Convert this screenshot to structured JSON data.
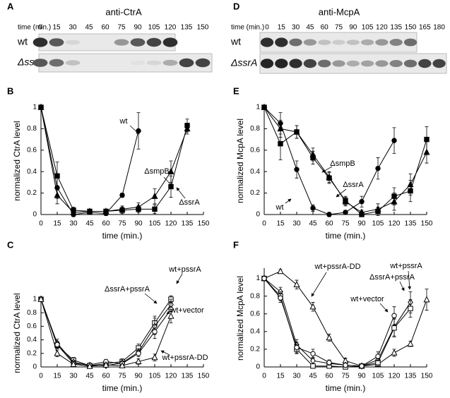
{
  "blots": [
    {
      "label": "A",
      "title": "anti-CtrA",
      "time_label": "time (min.)",
      "times": [
        0,
        15,
        30,
        45,
        60,
        75,
        90,
        105,
        120,
        135,
        150
      ],
      "rows": [
        "wt",
        "ΔssrA"
      ]
    },
    {
      "label": "D",
      "title": "anti-McpA",
      "time_label": "time (min.)",
      "times": [
        0,
        15,
        30,
        45,
        60,
        75,
        90,
        105,
        120,
        135,
        150,
        165,
        180
      ],
      "rows": [
        "wt",
        "ΔssrA"
      ]
    }
  ],
  "chart_data": [
    {
      "label": "B",
      "type": "line",
      "xlabel": "time (min.)",
      "ylabel": "normalized CtrA level",
      "xlim": [
        0,
        150
      ],
      "ylim": [
        0,
        1
      ],
      "xticks": [
        0,
        15,
        30,
        45,
        60,
        75,
        90,
        105,
        120,
        135,
        150
      ],
      "yticks": [
        0,
        0.2,
        0.4,
        0.6,
        0.8,
        1
      ],
      "series": [
        {
          "name": "wt",
          "color": "#000000",
          "marker": "circle",
          "filled": true,
          "x": [
            0,
            15,
            30,
            45,
            60,
            75,
            90
          ],
          "values": [
            1,
            0.25,
            0,
            0.02,
            0.01,
            0.18,
            0.78
          ],
          "errors": [
            0,
            0.1,
            0.02,
            0.02,
            0.02,
            0.02,
            0.17
          ]
        },
        {
          "name": "ΔsmpB",
          "color": "#000000",
          "marker": "triangle",
          "filled": true,
          "x": [
            0,
            15,
            30,
            45,
            60,
            75,
            90,
            105,
            120,
            135
          ],
          "values": [
            1,
            0.18,
            0.02,
            0.03,
            0.03,
            0.05,
            0.07,
            0.17,
            0.4,
            0.8
          ],
          "errors": [
            0,
            0.08,
            0.02,
            0.02,
            0.02,
            0.03,
            0.04,
            0.07,
            0.1,
            0.05
          ]
        },
        {
          "name": "ΔssrA",
          "color": "#000000",
          "marker": "square",
          "filled": true,
          "x": [
            0,
            15,
            30,
            45,
            60,
            75,
            90,
            105,
            120,
            135
          ],
          "values": [
            1,
            0.36,
            0.04,
            0.03,
            0.03,
            0.04,
            0.05,
            0.05,
            0.26,
            0.83
          ],
          "errors": [
            0,
            0.13,
            0.03,
            0.02,
            0.02,
            0.03,
            0.03,
            0.04,
            0.1,
            0.06
          ]
        }
      ]
    },
    {
      "label": "C",
      "type": "line",
      "xlabel": "time (min.)",
      "ylabel": "normalized CtrA level",
      "xlim": [
        0,
        150
      ],
      "ylim": [
        0,
        1
      ],
      "xticks": [
        0,
        15,
        30,
        45,
        60,
        75,
        90,
        105,
        120,
        135,
        150
      ],
      "yticks": [
        0,
        0.2,
        0.4,
        0.6,
        0.8,
        1
      ],
      "series": [
        {
          "name": "wt+pssrA",
          "color": "#000000",
          "marker": "square",
          "filled": false,
          "x": [
            0,
            15,
            30,
            45,
            60,
            75,
            90,
            105,
            120
          ],
          "values": [
            1,
            0.32,
            0.1,
            0.02,
            0.05,
            0.08,
            0.28,
            0.65,
            1
          ],
          "errors": [
            0,
            0.05,
            0.04,
            0.02,
            0.03,
            0.04,
            0.06,
            0.1,
            0.05
          ]
        },
        {
          "name": "ΔssrA+pssrA",
          "color": "#000000",
          "marker": "diamond",
          "filled": false,
          "x": [
            0,
            15,
            30,
            45,
            60,
            75,
            90,
            105,
            120
          ],
          "values": [
            1,
            0.35,
            0.07,
            0.02,
            0.02,
            0.06,
            0.22,
            0.6,
            0.92
          ],
          "errors": [
            0,
            0.06,
            0.03,
            0.02,
            0.02,
            0.03,
            0.05,
            0.12,
            0.08
          ]
        },
        {
          "name": "wt+vector",
          "color": "#000000",
          "marker": "circle",
          "filled": false,
          "x": [
            0,
            15,
            30,
            45,
            60,
            75,
            90,
            105,
            120
          ],
          "values": [
            1,
            0.33,
            0.05,
            0.03,
            0.08,
            0.05,
            0.2,
            0.52,
            0.85
          ],
          "errors": [
            0,
            0.05,
            0.03,
            0.02,
            0.03,
            0.03,
            0.05,
            0.1,
            0.1
          ]
        },
        {
          "name": "wt+pssrA-DD",
          "color": "#000000",
          "marker": "triangle",
          "filled": false,
          "x": [
            0,
            15,
            30,
            45,
            60,
            75,
            90,
            105,
            120
          ],
          "values": [
            1,
            0.2,
            0.04,
            0.01,
            0.03,
            0.02,
            0.08,
            0.14,
            0.75
          ],
          "errors": [
            0,
            0.05,
            0.02,
            0.02,
            0.02,
            0.02,
            0.04,
            0.05,
            0.1
          ]
        }
      ]
    },
    {
      "label": "E",
      "type": "line",
      "xlabel": "time (min.)",
      "ylabel": "normalized McpA level",
      "xlim": [
        0,
        150
      ],
      "ylim": [
        0,
        1
      ],
      "xticks": [
        0,
        15,
        30,
        45,
        60,
        75,
        90,
        105,
        120,
        135,
        150
      ],
      "yticks": [
        0,
        0.2,
        0.4,
        0.6,
        0.8,
        1
      ],
      "series": [
        {
          "name": "wt",
          "color": "#000000",
          "marker": "circle",
          "filled": true,
          "x": [
            0,
            15,
            30,
            45,
            60,
            75,
            90,
            105,
            120
          ],
          "values": [
            1,
            0.85,
            0.42,
            0.06,
            0,
            0.02,
            0.12,
            0.43,
            0.69
          ],
          "errors": [
            0,
            0.1,
            0.08,
            0.03,
            0.02,
            0.02,
            0.05,
            0.1,
            0.12
          ]
        },
        {
          "name": "ΔsmpB",
          "color": "#000000",
          "marker": "triangle",
          "filled": true,
          "x": [
            0,
            15,
            30,
            45,
            60,
            75,
            90,
            105,
            120,
            135,
            150
          ],
          "values": [
            1,
            0.8,
            0.77,
            0.56,
            0.35,
            0.12,
            0.02,
            0.05,
            0.12,
            0.28,
            0.58
          ],
          "errors": [
            0,
            0.08,
            0.06,
            0.06,
            0.05,
            0.04,
            0.02,
            0.05,
            0.08,
            0.1,
            0.1
          ]
        },
        {
          "name": "ΔssrA",
          "color": "#000000",
          "marker": "square",
          "filled": true,
          "x": [
            0,
            15,
            30,
            45,
            60,
            75,
            90,
            105,
            120,
            135,
            150
          ],
          "values": [
            1,
            0.66,
            0.77,
            0.53,
            0.34,
            0.13,
            0,
            0.03,
            0.17,
            0.22,
            0.7
          ],
          "errors": [
            0,
            0.15,
            0.06,
            0.06,
            0.05,
            0.04,
            0.02,
            0.04,
            0.08,
            0.1,
            0.12
          ]
        }
      ]
    },
    {
      "label": "F",
      "type": "line",
      "xlabel": "time (min.)",
      "ylabel": "normalized McpA level",
      "xlim": [
        0,
        150
      ],
      "ylim": [
        0,
        1.1
      ],
      "xticks": [
        0,
        15,
        30,
        45,
        60,
        75,
        90,
        105,
        120,
        135,
        150
      ],
      "yticks": [
        0,
        0.2,
        0.4,
        0.6,
        0.8,
        1
      ],
      "series": [
        {
          "name": "wt+pssrA-DD",
          "color": "#000000",
          "marker": "triangle",
          "filled": false,
          "x": [
            0,
            15,
            30,
            45,
            60,
            75,
            90,
            105,
            120,
            135,
            150
          ],
          "values": [
            1,
            1.08,
            0.93,
            0.68,
            0.33,
            0.07,
            0.01,
            0.03,
            0.16,
            0.26,
            0.76
          ],
          "errors": [
            0,
            0.02,
            0.05,
            0.05,
            0.04,
            0.03,
            0.02,
            0.03,
            0.04,
            0.03,
            0.12
          ]
        },
        {
          "name": "wt+pssrA",
          "color": "#000000",
          "marker": "diamond",
          "filled": false,
          "x": [
            0,
            15,
            30,
            45,
            60,
            75,
            90,
            105,
            120,
            135
          ],
          "values": [
            1,
            0.85,
            0.25,
            0.07,
            0.04,
            0.02,
            0.01,
            0.08,
            0.45,
            0.73
          ],
          "errors": [
            0,
            0.05,
            0.06,
            0.04,
            0.03,
            0.02,
            0.02,
            0.04,
            0.1,
            0.12
          ]
        },
        {
          "name": "ΔssrA+pssrA",
          "color": "#000000",
          "marker": "square",
          "filled": false,
          "x": [
            0,
            15,
            30,
            45,
            60,
            75,
            90,
            105,
            120,
            135
          ],
          "values": [
            1,
            0.8,
            0.2,
            0.01,
            0.01,
            0,
            0.01,
            0.05,
            0.44,
            0.66
          ],
          "errors": [
            0,
            0.05,
            0.05,
            0.02,
            0.02,
            0.02,
            0.02,
            0.04,
            0.1,
            0.1
          ]
        },
        {
          "name": "wt+vector",
          "color": "#000000",
          "marker": "circle",
          "filled": false,
          "x": [
            0,
            15,
            30,
            45,
            60,
            75,
            90,
            105,
            120
          ],
          "values": [
            1,
            0.78,
            0.22,
            0.15,
            0.05,
            0.02,
            0.01,
            0.12,
            0.58
          ],
          "errors": [
            0,
            0.05,
            0.06,
            0.05,
            0.03,
            0.02,
            0.02,
            0.05,
            0.1
          ]
        }
      ]
    }
  ]
}
